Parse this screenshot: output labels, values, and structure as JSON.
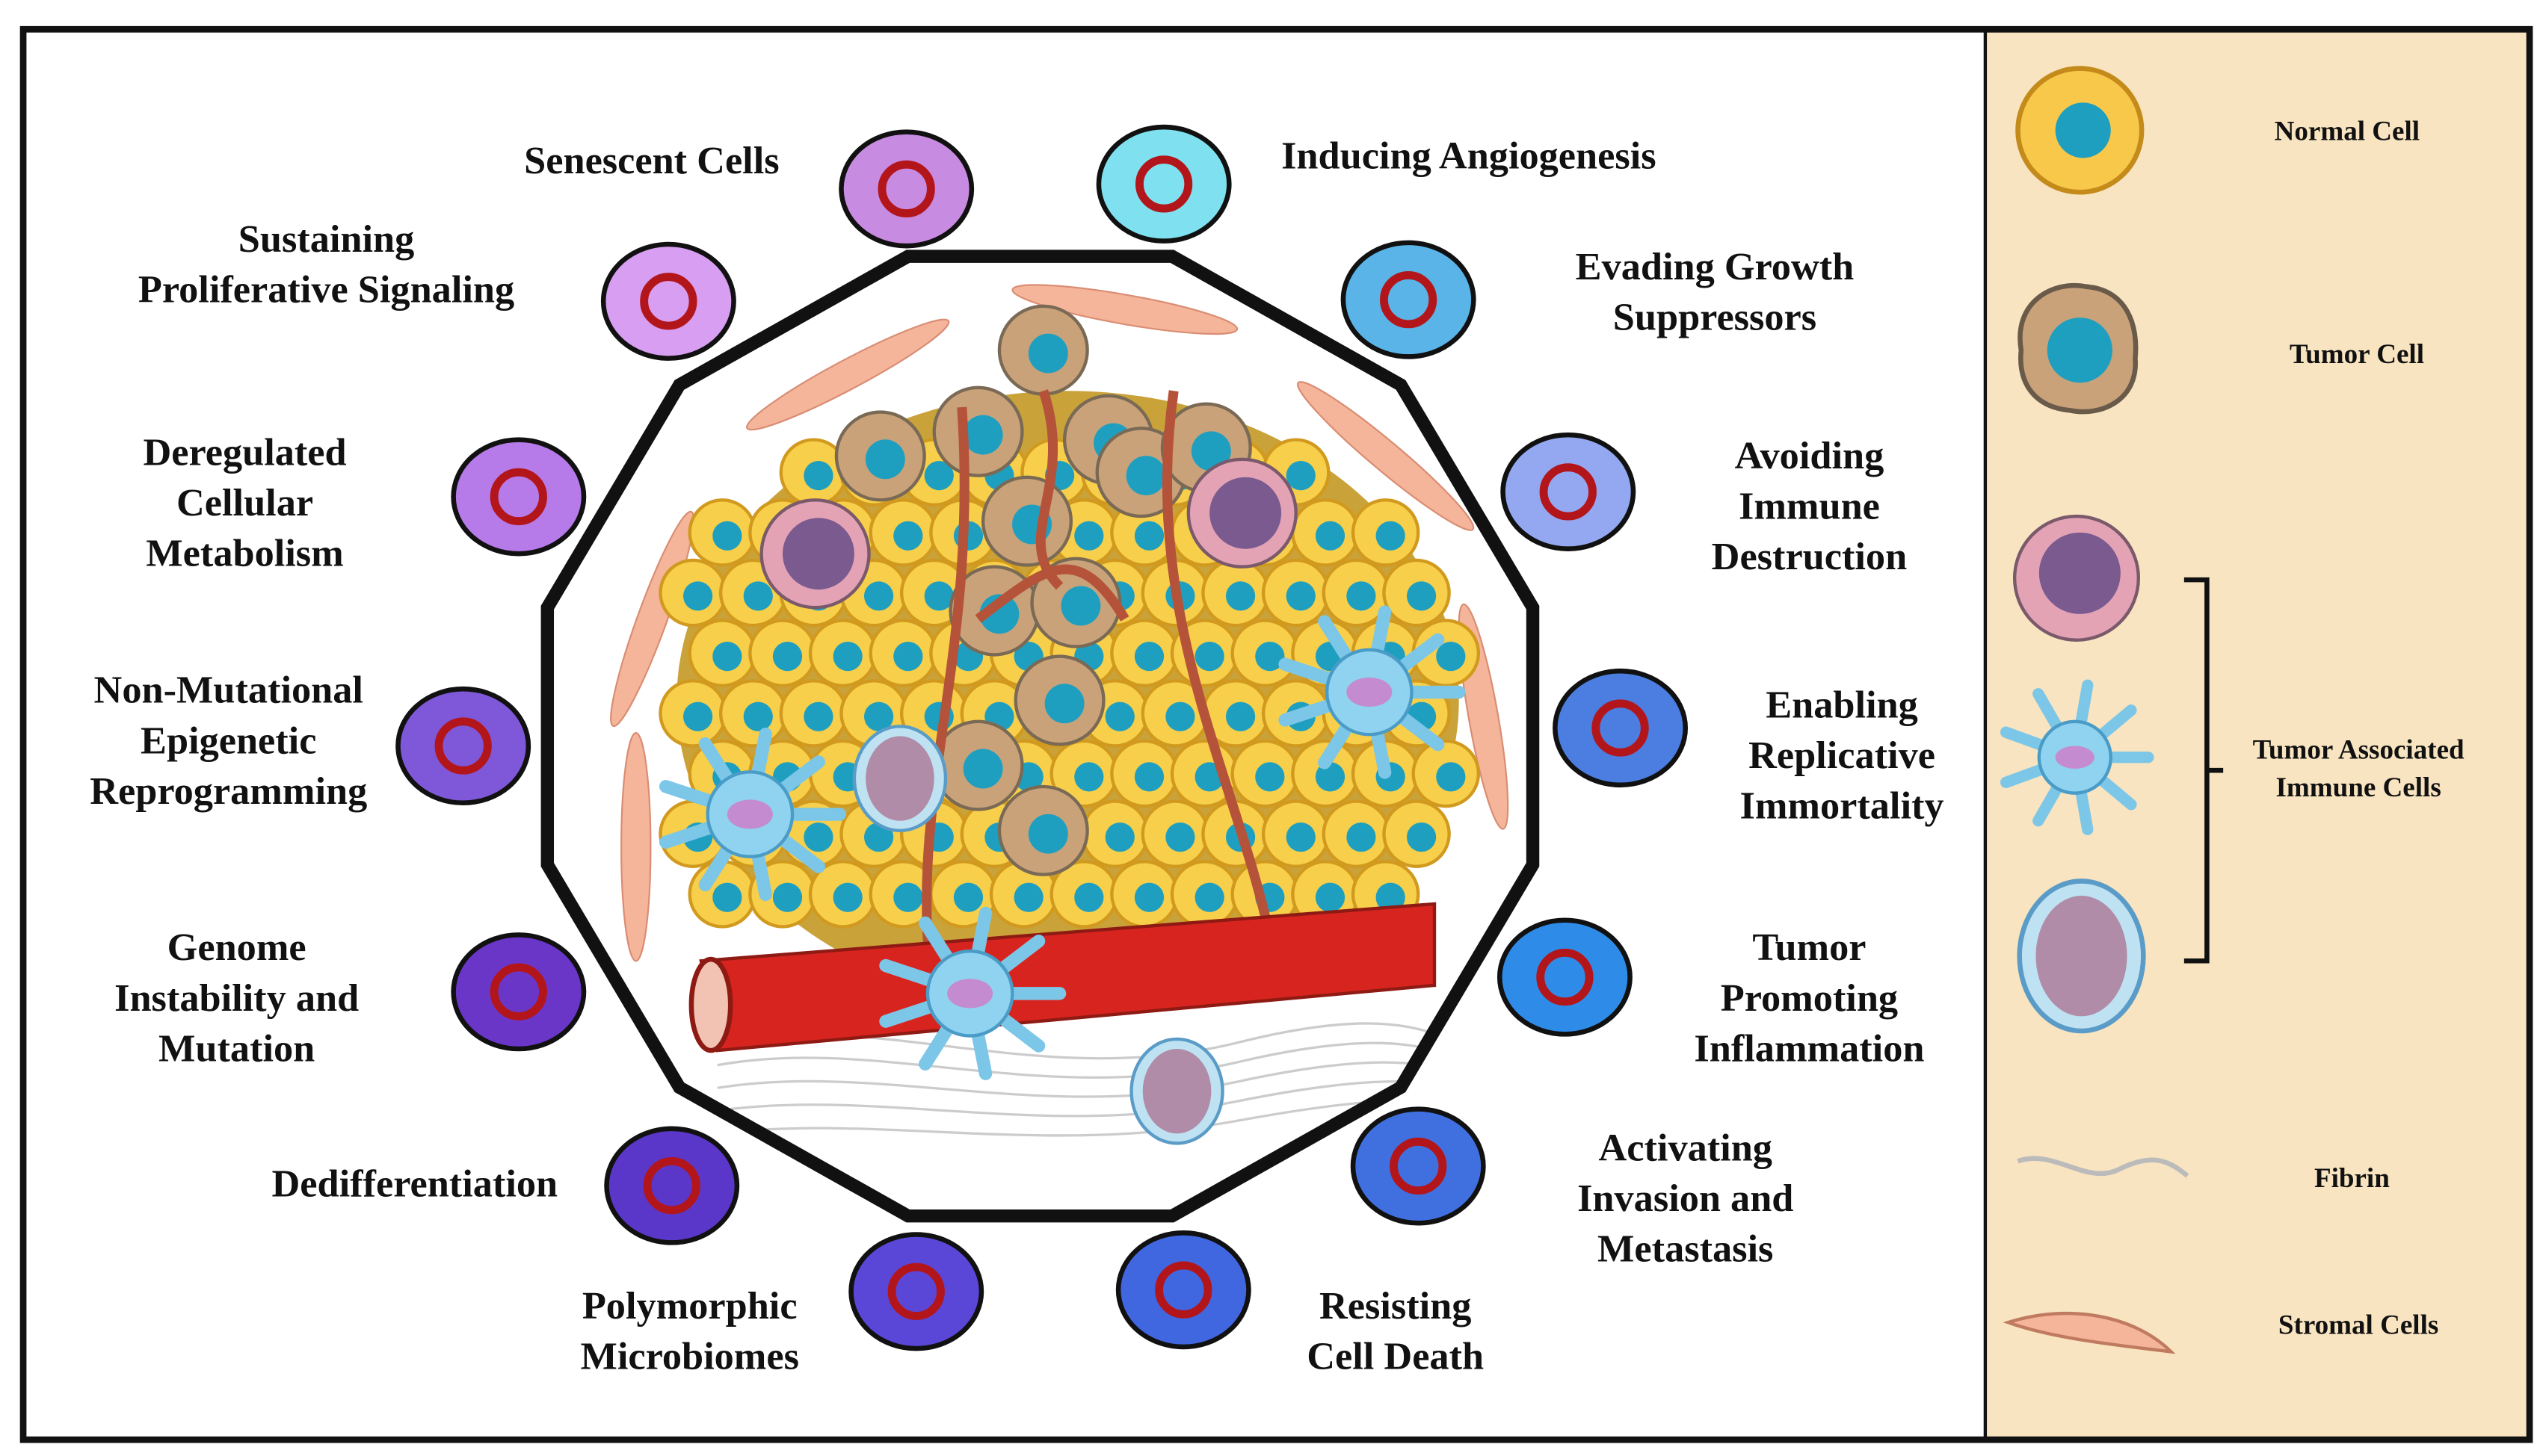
{
  "hallmarks": [
    {
      "lines": [
        "Senescent Cells"
      ]
    },
    {
      "lines": [
        "Inducing Angiogenesis"
      ]
    },
    {
      "lines": [
        "Sustaining",
        "Proliferative Signaling"
      ]
    },
    {
      "lines": [
        "Evading Growth",
        "Suppressors"
      ]
    },
    {
      "lines": [
        "Deregulated",
        "Cellular",
        "Metabolism"
      ]
    },
    {
      "lines": [
        "Avoiding",
        "Immune",
        "Destruction"
      ]
    },
    {
      "lines": [
        "Non-Mutational",
        "Epigenetic",
        "Reprogramming"
      ]
    },
    {
      "lines": [
        "Enabling",
        "Replicative",
        "Immortality"
      ]
    },
    {
      "lines": [
        "Genome",
        "Instability and",
        "Mutation"
      ]
    },
    {
      "lines": [
        "Tumor",
        "Promoting",
        "Inflammation"
      ]
    },
    {
      "lines": [
        "Dedifferentiation"
      ]
    },
    {
      "lines": [
        "Activating",
        "Invasion and",
        "Metastasis"
      ]
    },
    {
      "lines": [
        "Polymorphic",
        "Microbiomes"
      ]
    },
    {
      "lines": [
        "Resisting",
        "Cell Death"
      ]
    }
  ],
  "legend": {
    "normal_cell": "Normal Cell",
    "tumor_cell": "Tumor Cell",
    "immune_cells": [
      "Tumor Associated",
      "Immune Cells"
    ],
    "fibrin": "Fibrin",
    "stromal_cells": "Stromal Cells"
  }
}
